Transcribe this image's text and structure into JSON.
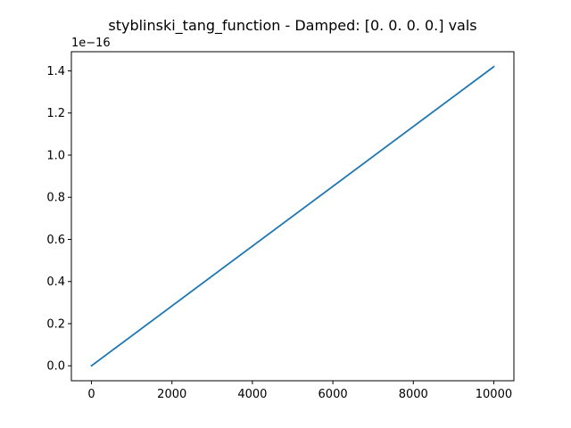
{
  "chart_data": {
    "type": "line",
    "title": "styblinski_tang_function - Damped: [0. 0. 0. 0.] vals",
    "xlabel": "",
    "ylabel": "",
    "y_offset_label": "1e−16",
    "xlim": [
      -500,
      10500
    ],
    "ylim": [
      -0.071,
      1.491
    ],
    "grid": false,
    "x_ticks": [
      {
        "value": 0,
        "label": "0"
      },
      {
        "value": 2000,
        "label": "2000"
      },
      {
        "value": 4000,
        "label": "4000"
      },
      {
        "value": 6000,
        "label": "6000"
      },
      {
        "value": 8000,
        "label": "8000"
      },
      {
        "value": 10000,
        "label": "10000"
      }
    ],
    "y_ticks": [
      {
        "value": 0.0,
        "label": "0.0"
      },
      {
        "value": 0.2,
        "label": "0.2"
      },
      {
        "value": 0.4,
        "label": "0.4"
      },
      {
        "value": 0.6,
        "label": "0.6"
      },
      {
        "value": 0.8,
        "label": "0.8"
      },
      {
        "value": 1.0,
        "label": "1.0"
      },
      {
        "value": 1.2,
        "label": "1.2"
      },
      {
        "value": 1.4,
        "label": "1.4"
      }
    ],
    "series": [
      {
        "color": "#1f77b4",
        "x": [
          0,
          10000
        ],
        "y": [
          0.0,
          1.42
        ]
      }
    ]
  }
}
